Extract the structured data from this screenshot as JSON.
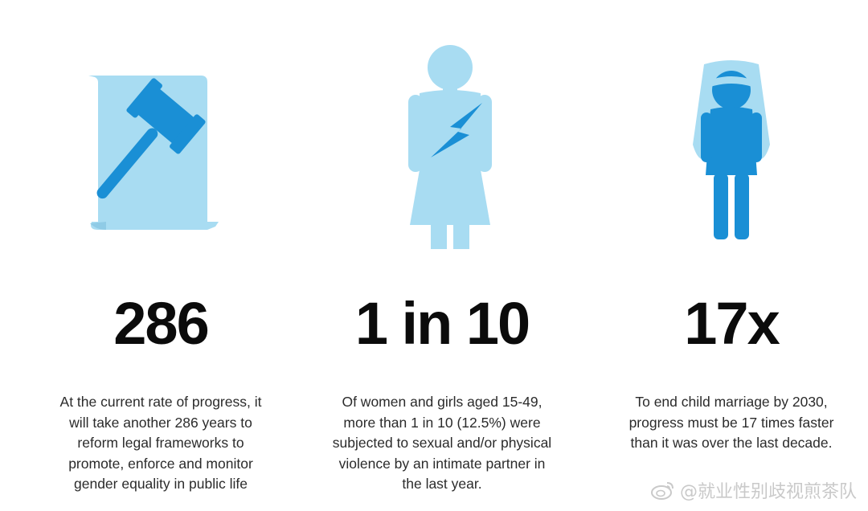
{
  "colors": {
    "light_blue": "#a8dcf2",
    "dark_blue": "#1a8fd5",
    "text": "#2b2b2b",
    "stat": "#0b0b0b"
  },
  "stats": [
    {
      "icon": "gavel-document-icon",
      "value": "286",
      "lines": [
        "At the current rate of progress, it",
        "will take another 286 years to",
        "reform legal frameworks to",
        "promote, enforce and monitor",
        "gender equality in public life"
      ]
    },
    {
      "icon": "woman-lightning-icon",
      "value": "1 in 10",
      "lines": [
        "Of women and girls aged 15-49,",
        "more than 1 in 10 (12.5%) were",
        "subjected to sexual and/or physical",
        "violence by an intimate partner in",
        "the last year."
      ]
    },
    {
      "icon": "girl-veil-icon",
      "value": "17x",
      "lines": [
        "To end child marriage by 2030,",
        "progress must be 17 times faster",
        "than it was over the last decade."
      ]
    }
  ],
  "watermark": {
    "icon": "weibo-icon",
    "text": "@就业性别歧视煎茶队"
  }
}
